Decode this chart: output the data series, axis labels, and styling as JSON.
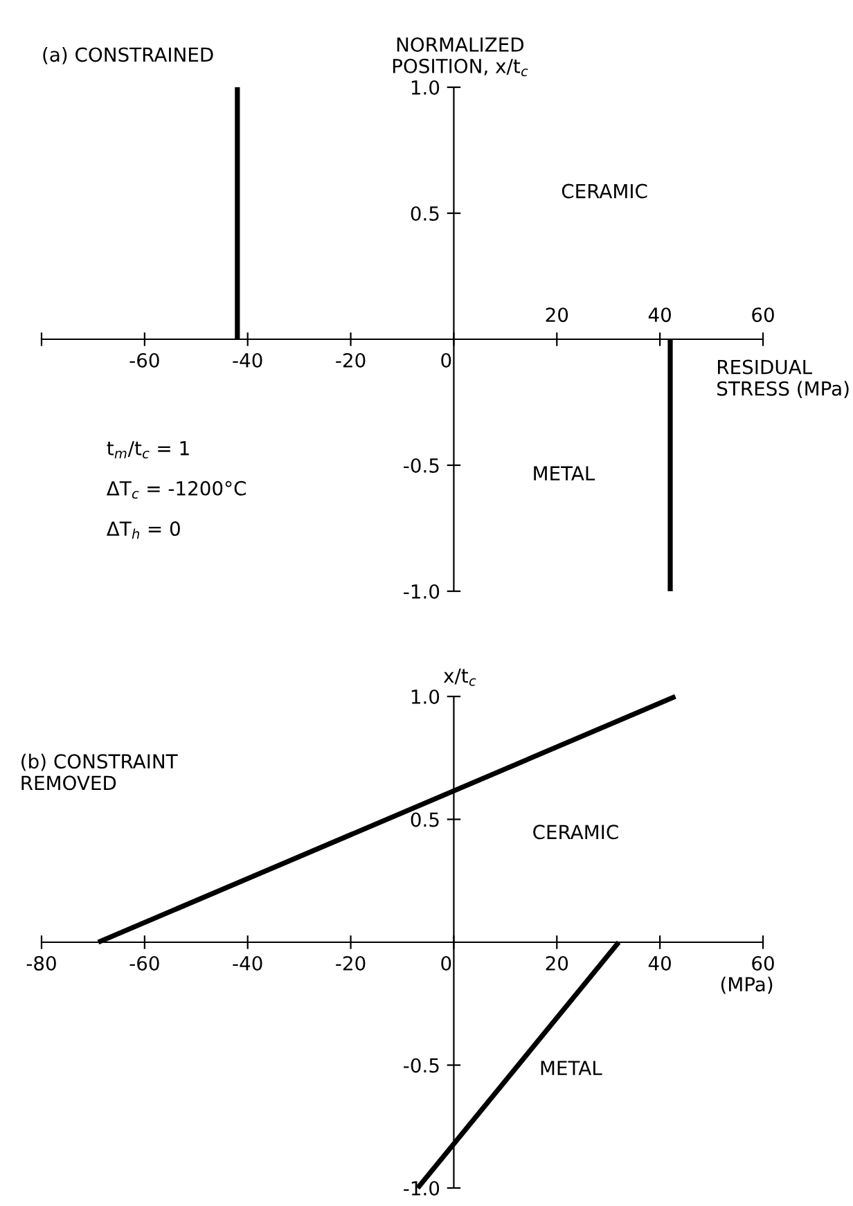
{
  "chart_data": [
    {
      "type": "line",
      "title": "(a) CONSTRAINED",
      "xlabel": "RESIDUAL\nSTRESS (MPa)",
      "ylabel": "NORMALIZED\nPOSITION, x/t$_{c}$",
      "series": [
        {
          "color": "#000000",
          "x": [
            -42,
            -42
          ],
          "values": [
            0,
            1.0
          ]
        },
        {
          "color": "#000000",
          "x": [
            42,
            42
          ],
          "values": [
            0,
            -1.0
          ]
        }
      ],
      "xlim": [
        -80,
        60
      ],
      "xticks": [
        {
          "value": -80,
          "label": null
        },
        -60,
        -40,
        -20,
        0
      ],
      "x2lim": [
        -80,
        60
      ],
      "x2ticks": [
        20,
        40,
        60
      ],
      "ylim": [
        -1.0,
        1.0
      ],
      "yticks": [
        {
          "value": -1.0,
          "label": "-1.0"
        },
        {
          "value": -0.5,
          "label": "-0.5"
        },
        {
          "value": 0.5,
          "label": "0.5"
        },
        {
          "value": 1.0,
          "label": "1.0"
        }
      ],
      "annotations": [
        "CERAMIC",
        "METAL",
        "t$_{m}$/t$_{c}$ = 1",
        "ΔT$_{c}$ = -1200°C",
        "ΔT$_{h}$ = 0"
      ],
      "grid": false,
      "legend": false,
      "marker": "none",
      "line_style": "solid"
    },
    {
      "type": "line",
      "title": "(b) CONSTRAINT\nREMOVED",
      "xlabel": "(MPa)",
      "ylabel": "x/t$_{c}$",
      "series": [
        {
          "color": "#000000",
          "x": [
            -69,
            43
          ],
          "values": [
            0,
            1.0
          ]
        },
        {
          "color": "#000000",
          "x": [
            -7,
            32
          ],
          "values": [
            -1.0,
            0
          ]
        }
      ],
      "xlim": [
        -80,
        60
      ],
      "xticks": [
        -80,
        -60,
        -40,
        -20,
        0,
        20,
        40,
        60
      ],
      "ylim": [
        -1.0,
        1.0
      ],
      "yticks": [
        {
          "value": -1.0,
          "label": "-1.0"
        },
        {
          "value": -0.5,
          "label": "-0.5"
        },
        {
          "value": 0.5,
          "label": "0.5"
        },
        {
          "value": 1.0,
          "label": "1.0"
        }
      ],
      "annotations": [
        "CERAMIC",
        "METAL"
      ],
      "grid": false,
      "legend": false,
      "marker": "none",
      "line_style": "solid"
    }
  ]
}
